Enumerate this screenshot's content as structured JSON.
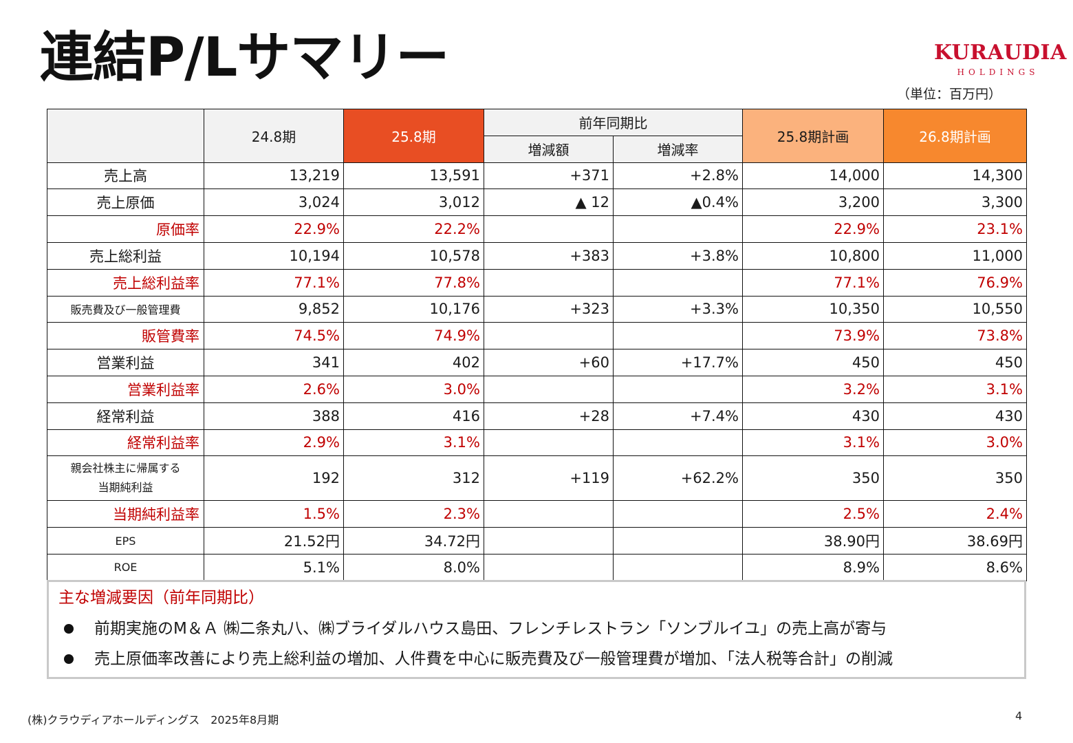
{
  "title": "連結P/Lサマリー",
  "logo": {
    "main": "KURAUDIA",
    "sub": "HOLDINGS"
  },
  "unit": "（単位：百万円）",
  "table": {
    "headers": {
      "prev": "24.8期",
      "curr": "25.8期",
      "yoy": "前年同期比",
      "yoy_amount": "増減額",
      "yoy_rate": "増減率",
      "plan25": "25.8期計画",
      "plan26": "26.8期計画"
    },
    "rows": [
      {
        "label": "売上高",
        "v": [
          "13,219",
          "13,591",
          "+371",
          "+2.8%",
          "14,000",
          "14,300"
        ]
      },
      {
        "label": "売上原価",
        "v": [
          "3,024",
          "3,012",
          "▲ 12",
          "▲0.4%",
          "3,200",
          "3,300"
        ]
      },
      {
        "label": "原価率",
        "v": [
          "22.9%",
          "22.2%",
          "",
          "",
          "22.9%",
          "23.1%"
        ]
      },
      {
        "label": "売上総利益",
        "v": [
          "10,194",
          "10,578",
          "+383",
          "+3.8%",
          "10,800",
          "11,000"
        ]
      },
      {
        "label": "売上総利益率",
        "v": [
          "77.1%",
          "77.8%",
          "",
          "",
          "77.1%",
          "76.9%"
        ]
      },
      {
        "label": "販売費及び一般管理費",
        "v": [
          "9,852",
          "10,176",
          "+323",
          "+3.3%",
          "10,350",
          "10,550"
        ]
      },
      {
        "label": "販管費率",
        "v": [
          "74.5%",
          "74.9%",
          "",
          "",
          "73.9%",
          "73.8%"
        ]
      },
      {
        "label": "営業利益",
        "v": [
          "341",
          "402",
          "+60",
          "+17.7%",
          "450",
          "450"
        ]
      },
      {
        "label": "営業利益率",
        "v": [
          "2.6%",
          "3.0%",
          "",
          "",
          "3.2%",
          "3.1%"
        ]
      },
      {
        "label": "経常利益",
        "v": [
          "388",
          "416",
          "+28",
          "+7.4%",
          "430",
          "430"
        ]
      },
      {
        "label": "経常利益率",
        "v": [
          "2.9%",
          "3.1%",
          "",
          "",
          "3.1%",
          "3.0%"
        ]
      },
      {
        "label_line1": "親会社株主に帰属する",
        "label_line2": "当期純利益",
        "v": [
          "192",
          "312",
          "+119",
          "+62.2%",
          "350",
          "350"
        ]
      },
      {
        "label": "当期純利益率",
        "v": [
          "1.5%",
          "2.3%",
          "",
          "",
          "2.5%",
          "2.4%"
        ]
      },
      {
        "label": "EPS",
        "v": [
          "21.52円",
          "34.72円",
          "",
          "",
          "38.90円",
          "38.69円"
        ]
      },
      {
        "label": "ROE",
        "v": [
          "5.1%",
          "8.0%",
          "",
          "",
          "8.9%",
          "8.6%"
        ]
      }
    ]
  },
  "factors": {
    "title": "主な増減要因（前年同期比）",
    "items": [
      "前期実施のM＆Ａ ㈱二条丸八、㈱ブライダルハウス島田、フレンチレストラン「ソンブルイユ」の売上高が寄与",
      "売上原価率改善により売上総利益の増加、人件費を中心に販売費及び一般管理費が増加、「法人税等合計」の削減"
    ]
  },
  "footer": "(株)クラウディアホールディングス　2025年8月期",
  "page_number": "4",
  "colors": {
    "current_header": "#e84e23",
    "plan25_header": "#fbb27d",
    "plan26_header": "#f7882e",
    "ratio_text": "#c00000",
    "logo": "#c8102e"
  }
}
